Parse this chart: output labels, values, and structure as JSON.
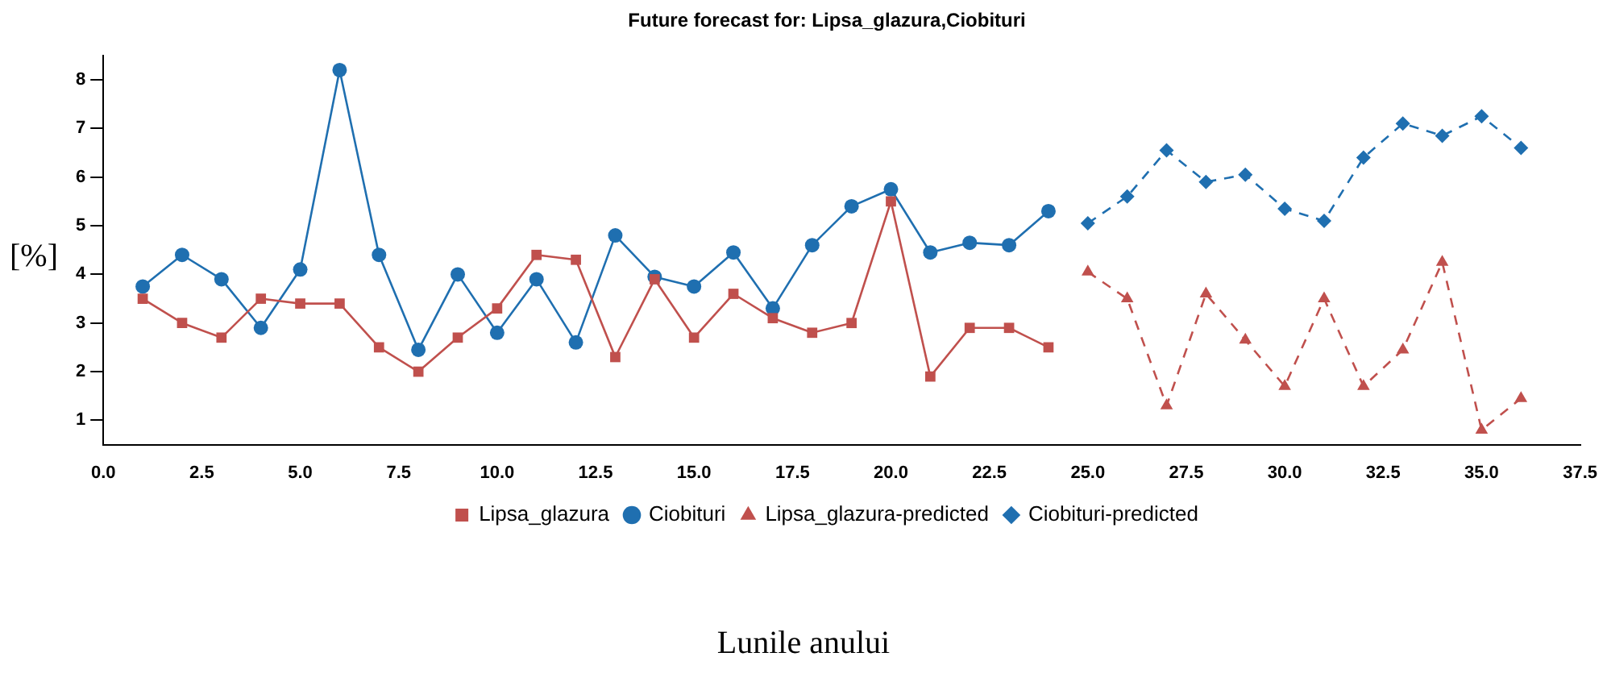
{
  "chart_data": {
    "type": "line",
    "title": "Future forecast for: Lipsa_glazura,Ciobituri",
    "xlabel": "Lunile anului",
    "ylabel": "[%]",
    "xlim": [
      0,
      37.5
    ],
    "xticks": [
      {
        "value": 0,
        "label": "0.0"
      },
      {
        "value": 2.5,
        "label": "2.5"
      },
      {
        "value": 5,
        "label": "5.0"
      },
      {
        "value": 7.5,
        "label": "7.5"
      },
      {
        "value": 10,
        "label": "10.0"
      },
      {
        "value": 12.5,
        "label": "12.5"
      },
      {
        "value": 15,
        "label": "15.0"
      },
      {
        "value": 17.5,
        "label": "17.5"
      },
      {
        "value": 20,
        "label": "20.0"
      },
      {
        "value": 22.5,
        "label": "22.5"
      },
      {
        "value": 25,
        "label": "25.0"
      },
      {
        "value": 27.5,
        "label": "27.5"
      },
      {
        "value": 30,
        "label": "30.0"
      },
      {
        "value": 32.5,
        "label": "32.5"
      },
      {
        "value": 35,
        "label": "35.0"
      },
      {
        "value": 37.5,
        "label": "37.5"
      }
    ],
    "ylim": [
      0.5,
      8.5
    ],
    "yticks": [
      1,
      2,
      3,
      4,
      5,
      6,
      7,
      8
    ],
    "grid": false,
    "legend": "bottom",
    "series": [
      {
        "name": "Lipsa_glazura",
        "color": "#c0504d",
        "marker": "square",
        "line_style": "solid",
        "x": [
          1,
          2,
          3,
          4,
          5,
          6,
          7,
          8,
          9,
          10,
          11,
          12,
          13,
          14,
          15,
          16,
          17,
          18,
          19,
          20,
          21,
          22,
          23,
          24
        ],
        "values": [
          3.5,
          3.0,
          2.7,
          3.5,
          3.4,
          3.4,
          2.5,
          2.0,
          2.7,
          3.3,
          4.4,
          4.3,
          2.3,
          3.9,
          2.7,
          3.6,
          3.1,
          2.8,
          3.0,
          5.5,
          1.9,
          2.9,
          2.9,
          2.5
        ]
      },
      {
        "name": "Ciobituri",
        "color": "#1f6fb0",
        "marker": "circle",
        "line_style": "solid",
        "x": [
          1,
          2,
          3,
          4,
          5,
          6,
          7,
          8,
          9,
          10,
          11,
          12,
          13,
          14,
          15,
          16,
          17,
          18,
          19,
          20,
          21,
          22,
          23,
          24
        ],
        "values": [
          3.75,
          4.4,
          3.9,
          2.9,
          4.1,
          8.2,
          4.4,
          2.45,
          4.0,
          2.8,
          3.9,
          2.6,
          4.8,
          3.95,
          3.75,
          4.45,
          3.3,
          4.6,
          5.4,
          5.75,
          4.45,
          4.65,
          4.6,
          5.3
        ]
      },
      {
        "name": "Lipsa_glazura-predicted",
        "color": "#c0504d",
        "marker": "triangle",
        "line_style": "dashed",
        "x": [
          25,
          26,
          27,
          28,
          29,
          30,
          31,
          32,
          33,
          34,
          35,
          36
        ],
        "values": [
          4.05,
          3.5,
          1.3,
          3.6,
          2.65,
          1.7,
          3.5,
          1.7,
          2.45,
          4.25,
          0.8,
          1.45
        ]
      },
      {
        "name": "Ciobituri-predicted",
        "color": "#1f6fb0",
        "marker": "diamond",
        "line_style": "dashed",
        "x": [
          25,
          26,
          27,
          28,
          29,
          30,
          31,
          32,
          33,
          34,
          35,
          36
        ],
        "values": [
          5.05,
          5.6,
          6.55,
          5.9,
          6.05,
          5.35,
          5.1,
          6.4,
          7.1,
          6.85,
          7.25,
          6.6
        ]
      }
    ]
  }
}
